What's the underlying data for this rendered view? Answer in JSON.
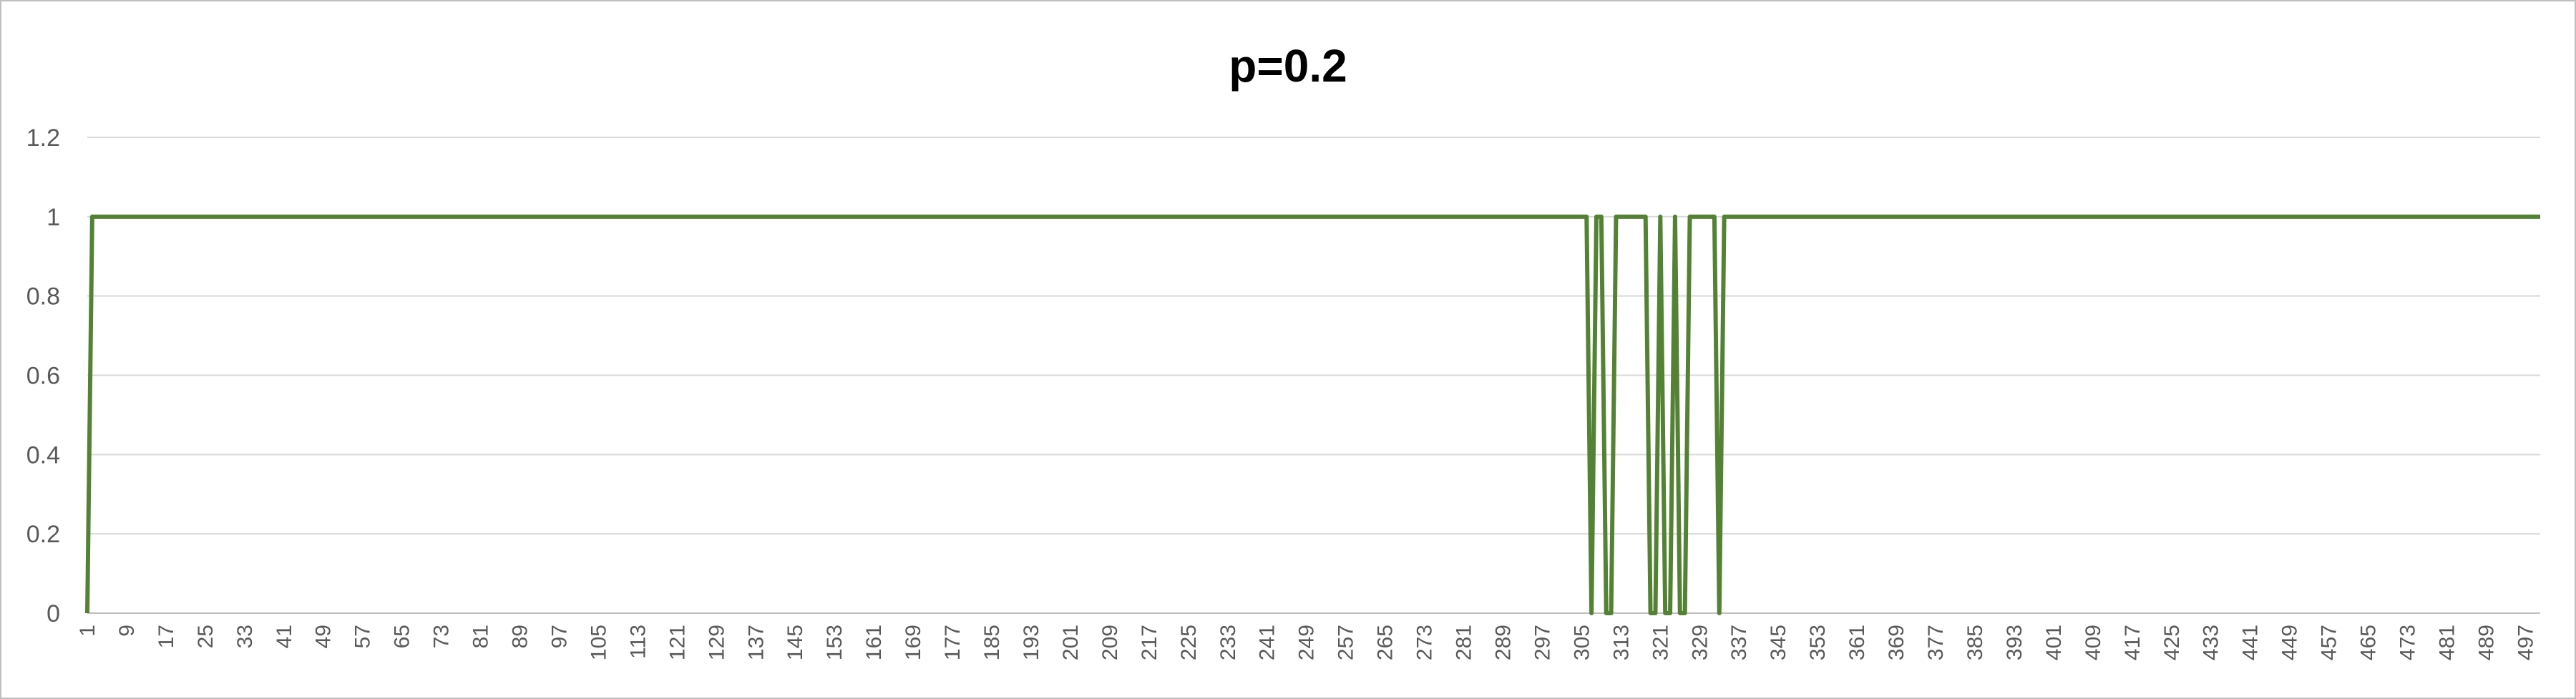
{
  "chart_data": {
    "type": "line",
    "title": "p=0.2",
    "xlabel": "",
    "ylabel": "",
    "x_range": [
      1,
      500
    ],
    "ylim": [
      0,
      1.2
    ],
    "y_ticks": [
      0,
      0.2,
      0.4,
      0.6,
      0.8,
      1,
      1.2
    ],
    "y_tick_labels": [
      "0",
      "0.2",
      "0.4",
      "0.6",
      "0.8",
      "1",
      "1.2"
    ],
    "x_tick_labels": [
      "1",
      "9",
      "17",
      "25",
      "33",
      "41",
      "49",
      "57",
      "65",
      "73",
      "81",
      "89",
      "97",
      "105",
      "113",
      "121",
      "129",
      "137",
      "145",
      "153",
      "161",
      "169",
      "177",
      "185",
      "193",
      "201",
      "209",
      "217",
      "225",
      "233",
      "241",
      "249",
      "257",
      "265",
      "273",
      "281",
      "289",
      "297",
      "305",
      "313",
      "321",
      "329",
      "337",
      "345",
      "353",
      "361",
      "369",
      "377",
      "385",
      "393",
      "401",
      "409",
      "417",
      "425",
      "433",
      "441",
      "449",
      "457",
      "465",
      "473",
      "481",
      "489",
      "497"
    ],
    "grid": true,
    "legend": "none",
    "series": [
      {
        "color": "#548235",
        "default_value": 1,
        "points_x": [
          1,
          2,
          306,
          307,
          308,
          309,
          310,
          311,
          312,
          313,
          318,
          319,
          320,
          321,
          322,
          323,
          324,
          325,
          326,
          327,
          328,
          329,
          332,
          333,
          334
        ],
        "points_y": [
          0,
          1,
          1,
          0,
          1,
          1,
          0,
          0,
          1,
          1,
          1,
          0,
          0,
          1,
          0,
          0,
          1,
          0,
          0,
          1,
          1,
          1,
          1,
          0,
          1
        ]
      }
    ]
  }
}
